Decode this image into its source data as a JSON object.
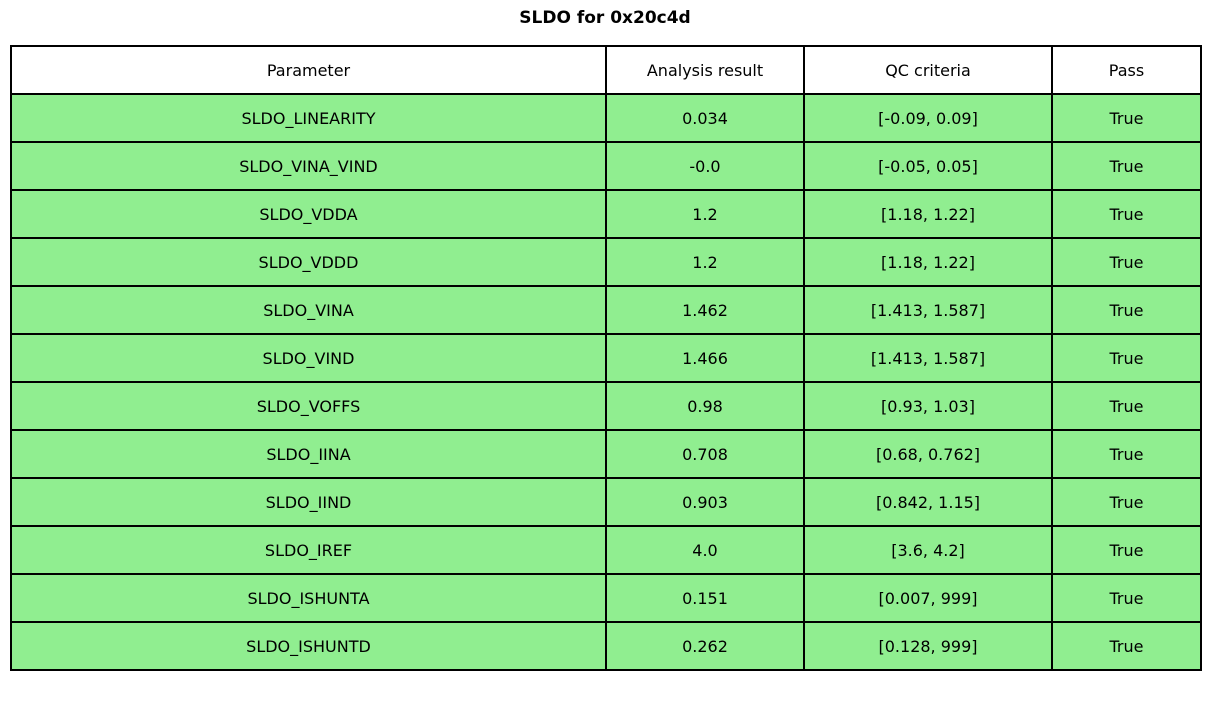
{
  "chart_data": {
    "type": "table",
    "title": "SLDO for 0x20c4d",
    "columns": [
      "Parameter",
      "Analysis result",
      "QC criteria",
      "Pass"
    ],
    "rows": [
      [
        "SLDO_LINEARITY",
        "0.034",
        "[-0.09, 0.09]",
        "True"
      ],
      [
        "SLDO_VINA_VIND",
        "-0.0",
        "[-0.05, 0.05]",
        "True"
      ],
      [
        "SLDO_VDDA",
        "1.2",
        "[1.18, 1.22]",
        "True"
      ],
      [
        "SLDO_VDDD",
        "1.2",
        "[1.18, 1.22]",
        "True"
      ],
      [
        "SLDO_VINA",
        "1.462",
        "[1.413, 1.587]",
        "True"
      ],
      [
        "SLDO_VIND",
        "1.466",
        "[1.413, 1.587]",
        "True"
      ],
      [
        "SLDO_VOFFS",
        "0.98",
        "[0.93, 1.03]",
        "True"
      ],
      [
        "SLDO_IINA",
        "0.708",
        "[0.68, 0.762]",
        "True"
      ],
      [
        "SLDO_IIND",
        "0.903",
        "[0.842, 1.15]",
        "True"
      ],
      [
        "SLDO_IREF",
        "4.0",
        "[3.6, 4.2]",
        "True"
      ],
      [
        "SLDO_ISHUNTA",
        "0.151",
        "[0.007, 999]",
        "True"
      ],
      [
        "SLDO_ISHUNTD",
        "0.262",
        "[0.128, 999]",
        "True"
      ]
    ],
    "layout": {
      "legend": "none",
      "grid": "cell-borders",
      "pass_row_color": "#90ee90",
      "header_bg_color": "#ffffff",
      "border_color": "#000000"
    }
  }
}
